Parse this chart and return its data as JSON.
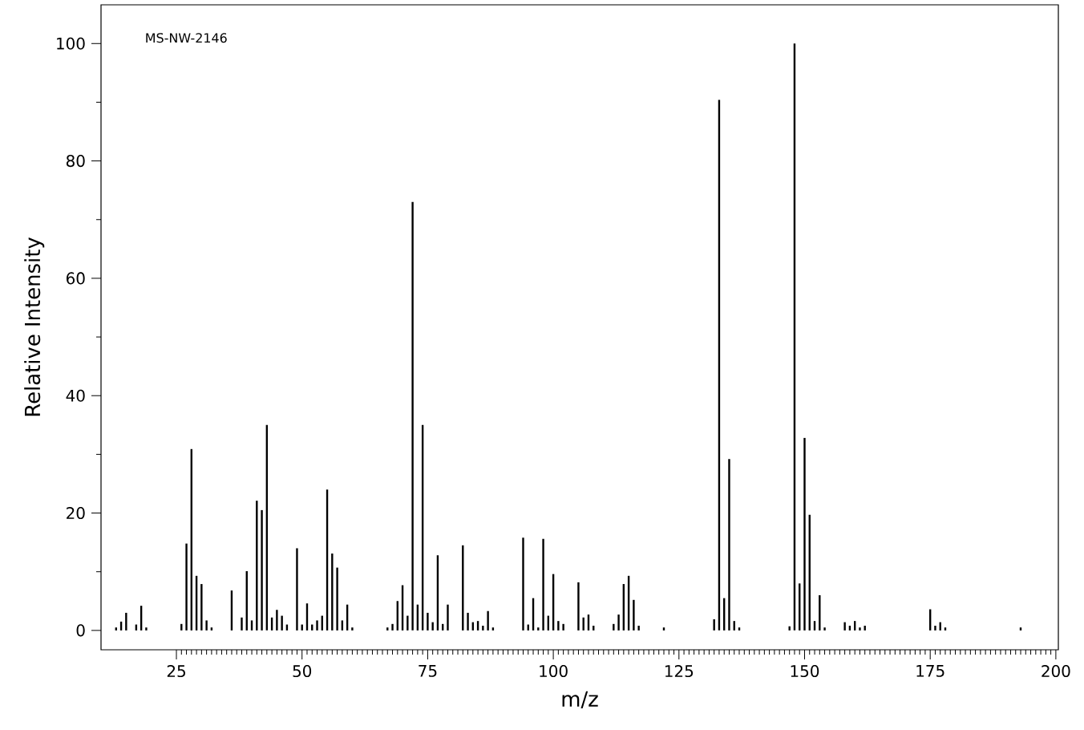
{
  "chart_data": {
    "type": "bar",
    "xlabel": "m/z",
    "ylabel": "Relative Intensity",
    "annotations": [
      "MS-NW-2146"
    ],
    "x": [
      13,
      14,
      15,
      17,
      18,
      19,
      26,
      27,
      28,
      29,
      30,
      31,
      32,
      36,
      38,
      39,
      40,
      41,
      42,
      43,
      44,
      45,
      46,
      47,
      49,
      50,
      51,
      52,
      53,
      54,
      55,
      56,
      57,
      58,
      59,
      60,
      67,
      68,
      69,
      70,
      71,
      72,
      73,
      74,
      75,
      76,
      77,
      78,
      79,
      82,
      83,
      84,
      85,
      86,
      87,
      88,
      94,
      95,
      96,
      97,
      98,
      99,
      100,
      101,
      102,
      105,
      106,
      107,
      108,
      112,
      113,
      114,
      115,
      116,
      117,
      122,
      132,
      133,
      134,
      135,
      136,
      137,
      147,
      148,
      149,
      150,
      151,
      152,
      153,
      154,
      158,
      159,
      160,
      161,
      162,
      175,
      176,
      177,
      178,
      193
    ],
    "values": [
      0.5,
      1.5,
      3,
      1,
      4.2,
      0.5,
      1.1,
      14.8,
      30.9,
      9.3,
      7.9,
      1.7,
      0.5,
      6.8,
      2.2,
      10.1,
      1.7,
      22.1,
      20.5,
      35,
      2.2,
      3.5,
      2.5,
      1,
      14,
      1,
      4.6,
      1,
      1.7,
      2.5,
      24,
      13.1,
      10.7,
      1.7,
      4.4,
      0.5,
      0.5,
      1.1,
      5,
      7.7,
      2.5,
      73,
      4.4,
      35,
      3,
      1.4,
      12.8,
      1.1,
      4.4,
      14.5,
      3,
      1.4,
      1.6,
      0.8,
      3.3,
      0.5,
      15.8,
      1,
      5.5,
      0.5,
      15.6,
      2.5,
      9.6,
      1.6,
      1.1,
      8.2,
      2.2,
      2.7,
      0.8,
      1.1,
      2.7,
      7.9,
      9.3,
      5.2,
      0.8,
      0.5,
      1.9,
      90.4,
      5.5,
      29.2,
      1.6,
      0.5,
      0.7,
      100,
      8,
      32.8,
      19.7,
      1.6,
      6,
      0.5,
      1.4,
      0.8,
      1.6,
      0.5,
      0.8,
      3.6,
      0.8,
      1.4,
      0.5,
      0.5
    ],
    "color": "#000000",
    "xlim": [
      10,
      200.5
    ],
    "ylim": [
      -3.3,
      106.6
    ],
    "xticks": [
      25,
      50,
      75,
      100,
      125,
      150,
      175,
      200
    ],
    "yticks": [
      0,
      20,
      40,
      60,
      80,
      100
    ]
  }
}
